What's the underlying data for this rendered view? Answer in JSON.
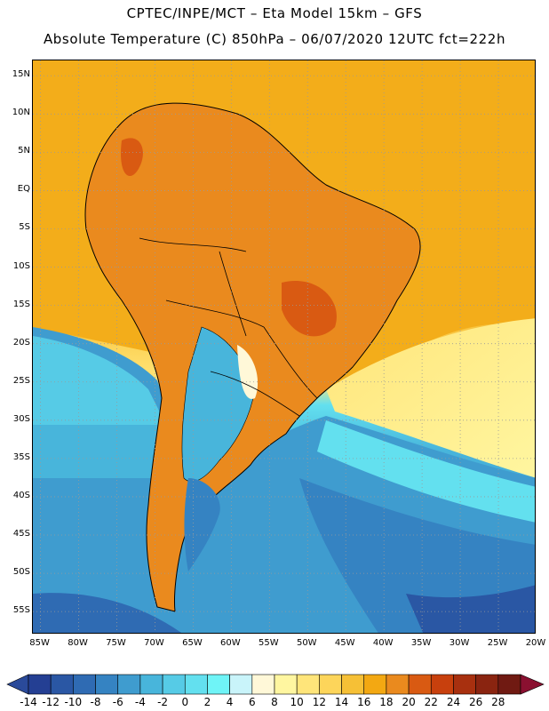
{
  "title": {
    "line1": "CPTEC/INPE/MCT –  Eta Model 15km – GFS",
    "line2": "Absolute Temperature (C) 850hPa – 06/07/2020 12UTC fct=222h"
  },
  "lat_labels": [
    "15N",
    "10N",
    "5N",
    "EQ",
    "5S",
    "10S",
    "15S",
    "20S",
    "25S",
    "30S",
    "35S",
    "40S",
    "45S",
    "50S",
    "55S"
  ],
  "lon_labels": [
    "85W",
    "80W",
    "75W",
    "70W",
    "65W",
    "60W",
    "55W",
    "50W",
    "45W",
    "40W",
    "35W",
    "30W",
    "25W",
    "20W"
  ],
  "map_extent": {
    "lon_min": -86,
    "lon_max": -20,
    "lat_min": -58,
    "lat_max": 17
  },
  "colorbar": {
    "labels": [
      "-14",
      "-12",
      "-10",
      "-8",
      "-6",
      "-4",
      "-2",
      "0",
      "2",
      "4",
      "6",
      "8",
      "10",
      "12",
      "14",
      "16",
      "18",
      "20",
      "22",
      "24",
      "26",
      "28"
    ],
    "under_color": "#2a4a9a",
    "over_color": "#8a1030",
    "colors": [
      "#243f93",
      "#2a57a4",
      "#2f6bb3",
      "#3583c2",
      "#3f9ccf",
      "#48b5db",
      "#56cbe6",
      "#63e0ef",
      "#6ff4f7",
      "#c9f4fa",
      "#fff8d8",
      "#fff6a0",
      "#ffe57a",
      "#fdd55a",
      "#f6c036",
      "#f3a812",
      "#ea8a1e",
      "#d95a12",
      "#c8400d",
      "#a8300f",
      "#8a2410",
      "#701a12"
    ]
  }
}
